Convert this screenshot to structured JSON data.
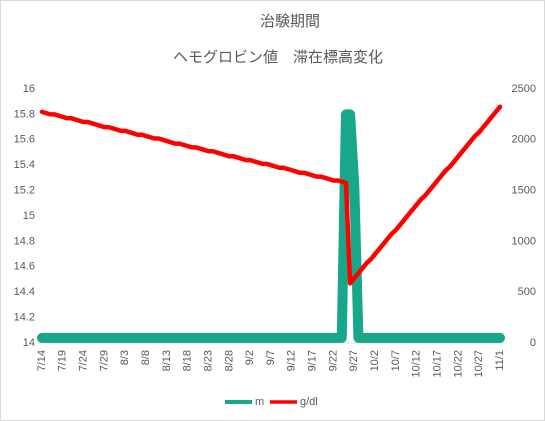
{
  "chart_data": {
    "type": "line",
    "title": "治験期間",
    "subtitle": "ヘモグロビン値　滞在標高変化",
    "categories": [
      "7/14",
      null,
      null,
      null,
      null,
      "7/19",
      null,
      null,
      null,
      null,
      "7/24",
      null,
      null,
      null,
      null,
      "7/29",
      null,
      null,
      null,
      null,
      "8/3",
      null,
      null,
      null,
      null,
      "8/8",
      null,
      null,
      null,
      null,
      "8/13",
      null,
      null,
      null,
      null,
      "8/18",
      null,
      null,
      null,
      null,
      "8/23",
      null,
      null,
      null,
      null,
      "8/28",
      null,
      null,
      null,
      null,
      "9/2",
      null,
      null,
      null,
      null,
      "9/7",
      null,
      null,
      null,
      null,
      "9/12",
      null,
      null,
      null,
      null,
      "9/17",
      null,
      null,
      null,
      null,
      "9/22",
      null,
      null,
      null,
      null,
      "9/27",
      null,
      null,
      null,
      null,
      "10/2",
      null,
      null,
      null,
      null,
      "10/7",
      null,
      null,
      null,
      null,
      "10/12",
      null,
      null,
      null,
      null,
      "10/17",
      null,
      null,
      null,
      null,
      "10/22",
      null,
      null,
      null,
      null,
      "10/27",
      null,
      null,
      null,
      null,
      "11/1"
    ],
    "series": [
      {
        "name": "m",
        "color": "#18a889",
        "axis": "y2",
        "values": [
          50,
          50,
          50,
          50,
          50,
          50,
          50,
          50,
          50,
          50,
          50,
          50,
          50,
          50,
          50,
          50,
          50,
          50,
          50,
          50,
          50,
          50,
          50,
          50,
          50,
          50,
          50,
          50,
          50,
          50,
          50,
          50,
          50,
          50,
          50,
          50,
          50,
          50,
          50,
          50,
          50,
          50,
          50,
          50,
          50,
          50,
          50,
          50,
          50,
          50,
          50,
          50,
          50,
          50,
          50,
          50,
          50,
          50,
          50,
          50,
          50,
          50,
          50,
          50,
          50,
          50,
          50,
          50,
          50,
          50,
          50,
          50,
          50,
          2250,
          2250,
          1550,
          50,
          50,
          50,
          50,
          50,
          50,
          50,
          50,
          50,
          50,
          50,
          50,
          50,
          50,
          50,
          50,
          50,
          50,
          50,
          50,
          50,
          50,
          50,
          50,
          50,
          50,
          50,
          50,
          50,
          50,
          50,
          50,
          50,
          50,
          50
        ]
      },
      {
        "name": "g/dl",
        "color": "#ff0000",
        "values": [
          15.82,
          15.81,
          15.8,
          15.8,
          15.79,
          15.78,
          15.77,
          15.77,
          15.76,
          15.75,
          15.74,
          15.74,
          15.73,
          15.72,
          15.71,
          15.7,
          15.7,
          15.69,
          15.68,
          15.67,
          15.67,
          15.66,
          15.65,
          15.64,
          15.64,
          15.63,
          15.62,
          15.61,
          15.61,
          15.6,
          15.59,
          15.58,
          15.57,
          15.57,
          15.56,
          15.55,
          15.54,
          15.54,
          15.53,
          15.52,
          15.51,
          15.51,
          15.5,
          15.49,
          15.48,
          15.47,
          15.47,
          15.46,
          15.45,
          15.44,
          15.44,
          15.43,
          15.42,
          15.41,
          15.41,
          15.4,
          15.39,
          15.38,
          15.38,
          15.37,
          15.36,
          15.35,
          15.34,
          15.34,
          15.33,
          15.32,
          15.31,
          15.31,
          15.3,
          15.29,
          15.28,
          15.28,
          15.27,
          15.26,
          14.47,
          14.51,
          14.55,
          14.59,
          14.63,
          14.66,
          14.7,
          14.74,
          14.78,
          14.82,
          14.86,
          14.89,
          14.93,
          14.97,
          15.01,
          15.05,
          15.09,
          15.13,
          15.16,
          15.2,
          15.24,
          15.28,
          15.32,
          15.36,
          15.39,
          15.43,
          15.47,
          15.51,
          15.55,
          15.59,
          15.63,
          15.66,
          15.7,
          15.74,
          15.78,
          15.82,
          15.86
        ]
      }
    ],
    "ylim": [
      14,
      16
    ],
    "yticks": [
      14,
      14.2,
      14.4,
      14.6,
      14.8,
      15,
      15.2,
      15.4,
      15.6,
      15.8,
      16
    ],
    "y2lim": [
      0,
      2500
    ],
    "y2ticks": [
      0,
      500,
      1000,
      1500,
      2000,
      2500
    ],
    "grid": false,
    "legend": "bottom"
  }
}
